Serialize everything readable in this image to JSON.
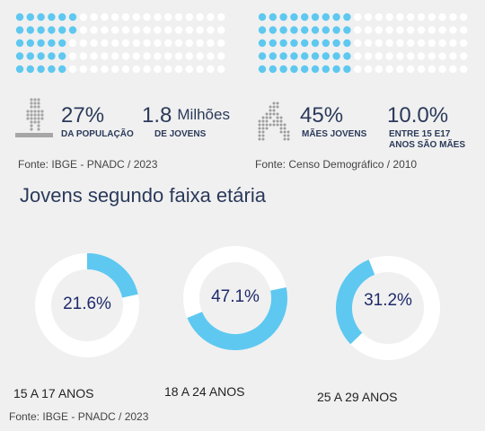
{
  "colors": {
    "accent": "#5ec8f0",
    "waffle_empty": "#ffffff",
    "donut_track": "#ffffff",
    "icon_gray": "#9e9e9e",
    "text_dark": "#2b3a5a"
  },
  "waffles": [
    {
      "filled_fraction": 0.27
    },
    {
      "filled_fraction": 0.45
    }
  ],
  "stats": {
    "pop_percent": "27%",
    "pop_caption": "DA POPULAÇÃO",
    "youth_value": "1.8",
    "youth_unit": "Milhões",
    "youth_caption": "DE JOVENS",
    "mothers_percent": "45%",
    "mothers_caption": "MÃES JOVENS",
    "young_mothers_percent": "10.0%",
    "young_mothers_caption_1": "ENTRE 15 E17",
    "young_mothers_caption_2": "ANOS SÃO MÃES",
    "icons": [
      "person-icon",
      "mother-child-icon"
    ]
  },
  "sources": {
    "left": "Fonte: IBGE - PNADC / 2023",
    "right": "Fonte: Censo Demográfico / 2010",
    "bottom": "Fonte: IBGE - PNADC / 2023"
  },
  "section_title": "Jovens segundo faixa etária",
  "chart_data": {
    "type": "pie",
    "categories": [
      "15 A 17 ANOS",
      "18 A 24 ANOS",
      "25 A 29 ANOS"
    ],
    "values": [
      21.6,
      47.1,
      31.2
    ],
    "value_labels": [
      "21.6%",
      "47.1%",
      "31.2%"
    ],
    "unit": "%"
  }
}
